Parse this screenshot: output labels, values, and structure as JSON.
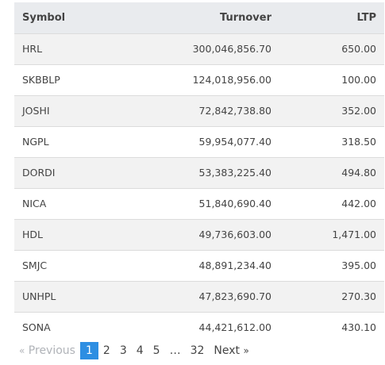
{
  "table": {
    "headers": [
      "Symbol",
      "Turnover",
      "LTP"
    ],
    "rows": [
      [
        "HRL",
        "300,046,856.70",
        "650.00"
      ],
      [
        "SKBBLP",
        "124,018,956.00",
        "100.00"
      ],
      [
        "JOSHI",
        "72,842,738.80",
        "352.00"
      ],
      [
        "NGPL",
        "59,954,077.40",
        "318.50"
      ],
      [
        "DORDI",
        "53,383,225.40",
        "494.80"
      ],
      [
        "NICA",
        "51,840,690.40",
        "442.00"
      ],
      [
        "HDL",
        "49,736,603.00",
        "1,471.00"
      ],
      [
        "SMJC",
        "48,891,234.40",
        "395.00"
      ],
      [
        "UNHPL",
        "47,823,690.70",
        "270.30"
      ],
      [
        "SONA",
        "44,421,612.00",
        "430.10"
      ]
    ]
  },
  "pagination": {
    "prev_arrow": "«",
    "prev_label": "Previous",
    "pages": [
      "1",
      "2",
      "3",
      "4",
      "5"
    ],
    "ellipsis": "…",
    "last_page": "32",
    "next_label": "Next",
    "next_arrow": "»",
    "current": "1"
  },
  "colors": {
    "header_bg": "#e9ebee",
    "stripe_bg": "#f2f2f2",
    "active_page": "#2d8ee2",
    "disabled_text": "#b0b3b8"
  }
}
